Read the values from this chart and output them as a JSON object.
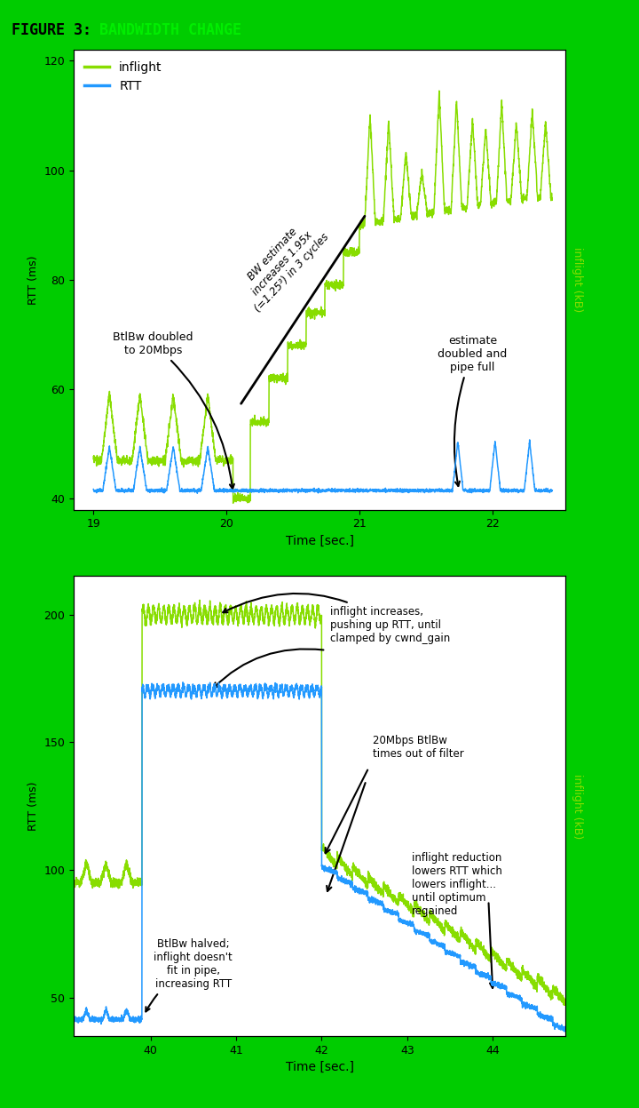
{
  "fig_background": "#00CC00",
  "title_black": "FIGURE 3: ",
  "title_green": "BANDWIDTH CHANGE",
  "title_green_color": "#00EE00",
  "plot_bg": "#ffffff",
  "green_color": "#88DD00",
  "blue_color": "#2299FF",
  "panel1": {
    "xlim": [
      18.85,
      22.55
    ],
    "ylim": [
      38,
      122
    ],
    "yticks": [
      40,
      60,
      80,
      100,
      120
    ],
    "xticks": [
      19,
      20,
      21,
      22
    ],
    "xlabel": "Time [sec.]",
    "ylabel_left": "RTT (ms)",
    "ylabel_right": "inflight (kB)"
  },
  "panel2": {
    "xlim": [
      39.1,
      44.85
    ],
    "ylim": [
      35,
      215
    ],
    "yticks": [
      50,
      100,
      150,
      200
    ],
    "xticks": [
      40,
      41,
      42,
      43,
      44
    ],
    "xlabel": "Time [sec.]",
    "ylabel_left": "RTT (ms)",
    "ylabel_right": "inflight (kB)"
  }
}
